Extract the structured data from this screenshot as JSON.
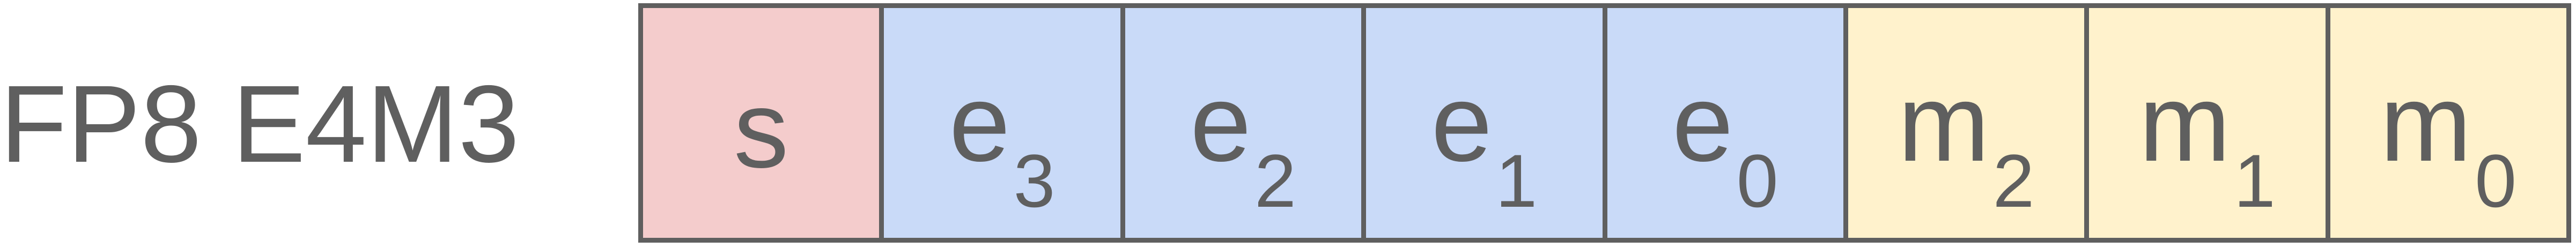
{
  "format_label": "FP8 E4M3",
  "colors": {
    "sign": "#f4cccc",
    "exponent": "#c9daf8",
    "mantissa": "#fff2cc",
    "border": "#5f5f5f",
    "text": "#5f5f5f"
  },
  "bits": [
    {
      "symbol": "s",
      "subscript": "",
      "kind": "sign"
    },
    {
      "symbol": "e",
      "subscript": "3",
      "kind": "exponent"
    },
    {
      "symbol": "e",
      "subscript": "2",
      "kind": "exponent"
    },
    {
      "symbol": "e",
      "subscript": "1",
      "kind": "exponent"
    },
    {
      "symbol": "e",
      "subscript": "0",
      "kind": "exponent"
    },
    {
      "symbol": "m",
      "subscript": "2",
      "kind": "mantissa"
    },
    {
      "symbol": "m",
      "subscript": "1",
      "kind": "mantissa"
    },
    {
      "symbol": "m",
      "subscript": "0",
      "kind": "mantissa"
    }
  ]
}
